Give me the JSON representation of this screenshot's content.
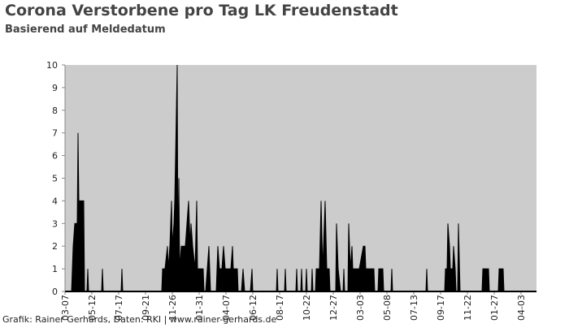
{
  "chart_data": {
    "type": "area",
    "title": "Corona Verstorbene pro Tag LK Freudenstadt",
    "subtitle": "Basierend auf Meldedatum",
    "source": "Grafik: Rainer Gerhards, Daten: RKI | www.rainer-gerhards.de",
    "color": "#000000",
    "background": "#cccccc",
    "x": [
      0,
      16,
      18,
      20,
      24,
      30,
      32,
      34,
      46,
      48,
      54,
      56,
      58,
      90,
      92,
      94,
      138,
      140,
      142,
      238,
      240,
      246,
      252,
      254,
      258,
      262,
      264,
      268,
      270,
      276,
      278,
      280,
      282,
      286,
      296,
      300,
      304,
      308,
      310,
      314,
      320,
      324,
      326,
      340,
      342,
      346,
      350,
      354,
      358,
      372,
      376,
      380,
      386,
      390,
      394,
      408,
      412,
      414,
      424,
      426,
      434,
      438,
      442,
      456,
      460,
      462,
      520,
      522,
      524,
      540,
      542,
      544,
      568,
      570,
      572,
      580,
      582,
      584,
      592,
      594,
      596,
      606,
      608,
      610,
      616,
      618,
      626,
      630,
      634,
      640,
      644,
      650,
      652,
      666,
      668,
      672,
      678,
      684,
      686,
      688,
      696,
      698,
      702,
      706,
      708,
      720,
      724,
      734,
      738,
      740,
      760,
      762,
      770,
      772,
      782,
      784,
      802,
      804,
      806,
      888,
      890,
      892,
      934,
      936,
      940,
      942,
      946,
      948,
      954,
      956,
      960,
      962,
      966,
      968,
      972,
      1026,
      1028,
      1042,
      1044,
      1066,
      1068,
      1078,
      1080,
      1160
    ],
    "values": [
      0,
      0,
      1,
      2,
      3,
      3,
      7,
      4,
      4,
      0,
      0,
      1,
      0,
      0,
      1,
      0,
      0,
      1,
      0,
      0,
      1,
      1,
      2,
      1,
      2,
      4,
      2,
      3,
      4,
      10,
      1,
      5,
      1,
      2,
      2,
      3,
      4,
      2,
      3,
      2,
      1,
      4,
      1,
      1,
      0,
      0,
      1,
      2,
      0,
      0,
      2,
      1,
      1,
      2,
      1,
      1,
      2,
      1,
      1,
      0,
      0,
      1,
      0,
      0,
      1,
      0,
      0,
      1,
      0,
      0,
      1,
      0,
      0,
      1,
      0,
      0,
      1,
      0,
      0,
      1,
      0,
      0,
      1,
      0,
      0,
      1,
      1,
      4,
      1,
      4,
      1,
      1,
      0,
      0,
      3,
      1,
      0,
      0,
      1,
      0,
      0,
      3,
      1,
      2,
      1,
      1,
      1,
      2,
      2,
      1,
      1,
      0,
      0,
      1,
      1,
      0,
      0,
      1,
      0,
      0,
      1,
      0,
      0,
      1,
      1,
      3,
      2,
      1,
      1,
      2,
      1,
      0,
      0,
      3,
      0,
      0,
      1,
      1,
      0,
      0,
      1,
      1,
      0,
      0
    ],
    "xlim": [
      0,
      1160
    ],
    "xticks": [
      {
        "value": 0,
        "label": "03-07"
      },
      {
        "value": 66,
        "label": "05-12"
      },
      {
        "value": 132,
        "label": "07-17"
      },
      {
        "value": 198,
        "label": "09-21"
      },
      {
        "value": 264,
        "label": "11-26"
      },
      {
        "value": 330,
        "label": "01-31"
      },
      {
        "value": 396,
        "label": "04-07"
      },
      {
        "value": 462,
        "label": "06-12"
      },
      {
        "value": 528,
        "label": "08-17"
      },
      {
        "value": 594,
        "label": "10-22"
      },
      {
        "value": 660,
        "label": "12-27"
      },
      {
        "value": 726,
        "label": "03-03"
      },
      {
        "value": 792,
        "label": "05-08"
      },
      {
        "value": 858,
        "label": "07-13"
      },
      {
        "value": 924,
        "label": "09-17"
      },
      {
        "value": 990,
        "label": "11-22"
      },
      {
        "value": 1056,
        "label": "01-27"
      },
      {
        "value": 1122,
        "label": "04-03"
      }
    ],
    "ylim": [
      0,
      10
    ],
    "yticks": [
      0,
      1,
      2,
      3,
      4,
      5,
      6,
      7,
      8,
      9,
      10
    ]
  }
}
